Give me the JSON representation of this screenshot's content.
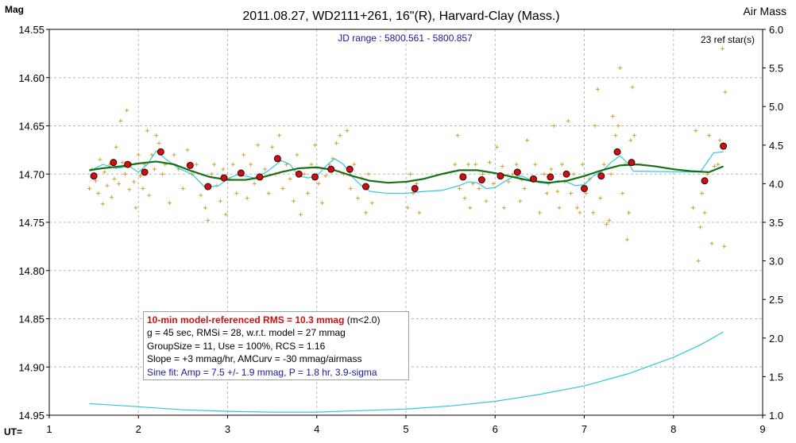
{
  "chart_data": {
    "type": "scatter",
    "title": "2011.08.27, WD2111+261, 16\"(R), Harvard-Clay (Mass.)",
    "subtitle": "JD range : 5800.561 - 5800.857",
    "ref_stars": "23 ref star(s)",
    "ylabel": "Mag",
    "y2label": "Air Mass",
    "xlabel": "UT=",
    "xlim": [
      1,
      9
    ],
    "ylim": [
      14.95,
      14.55
    ],
    "y2lim": [
      1.0,
      6.0
    ],
    "x_ticks": [
      "1",
      "2",
      "3",
      "4",
      "5",
      "6",
      "7",
      "8",
      "9"
    ],
    "y_ticks": [
      "14.55",
      "14.60",
      "14.65",
      "14.70",
      "14.75",
      "14.80",
      "14.85",
      "14.90",
      "14.95"
    ],
    "y2_ticks": [
      "6.0",
      "5.5",
      "5.0",
      "4.5",
      "4.0",
      "3.5",
      "3.0",
      "2.5",
      "2.0",
      "1.5",
      "1.0"
    ],
    "grid": true,
    "colors": {
      "raw": "#d4a032",
      "binned": "#d01010",
      "model": "#167016",
      "smooth": "#30c8d8",
      "airmass": "#30c8d8",
      "grid": "#b8b8b8",
      "subtitle": "#1a1a9a"
    },
    "series": [
      {
        "name": "binned",
        "x": [
          1.5,
          1.72,
          1.88,
          2.07,
          2.25,
          2.58,
          2.78,
          2.96,
          3.15,
          3.36,
          3.56,
          3.8,
          3.98,
          4.16,
          4.37,
          4.55,
          5.1,
          5.64,
          5.85,
          6.06,
          6.25,
          6.43,
          6.62,
          6.8,
          7.0,
          7.19,
          7.37,
          7.53,
          8.35,
          8.56
        ],
        "y": [
          14.702,
          14.688,
          14.69,
          14.698,
          14.677,
          14.691,
          14.713,
          14.704,
          14.699,
          14.703,
          14.684,
          14.7,
          14.703,
          14.695,
          14.695,
          14.713,
          14.715,
          14.703,
          14.706,
          14.702,
          14.698,
          14.705,
          14.703,
          14.7,
          14.715,
          14.702,
          14.677,
          14.688,
          14.707,
          14.671
        ]
      },
      {
        "name": "model",
        "x": [
          1.45,
          1.6,
          1.8,
          2.0,
          2.2,
          2.4,
          2.6,
          2.8,
          3.0,
          3.2,
          3.4,
          3.6,
          3.8,
          4.0,
          4.2,
          4.4,
          4.6,
          4.8,
          5.0,
          5.2,
          5.4,
          5.6,
          5.8,
          6.0,
          6.2,
          6.4,
          6.6,
          6.8,
          7.0,
          7.2,
          7.4,
          7.6,
          7.8,
          8.0,
          8.2,
          8.4,
          8.56
        ],
        "y": [
          14.696,
          14.694,
          14.692,
          14.689,
          14.687,
          14.69,
          14.697,
          14.703,
          14.706,
          14.706,
          14.703,
          14.698,
          14.694,
          14.693,
          14.696,
          14.702,
          14.707,
          14.709,
          14.708,
          14.705,
          14.7,
          14.696,
          14.696,
          14.699,
          14.703,
          14.707,
          14.709,
          14.707,
          14.702,
          14.696,
          14.691,
          14.69,
          14.692,
          14.695,
          14.697,
          14.698,
          14.692
        ]
      },
      {
        "name": "smooth",
        "x": [
          1.45,
          1.6,
          1.75,
          1.9,
          2.0,
          2.1,
          2.2,
          2.3,
          2.45,
          2.6,
          2.75,
          2.9,
          3.0,
          3.1,
          3.2,
          3.3,
          3.45,
          3.6,
          3.7,
          3.8,
          3.9,
          4.0,
          4.1,
          4.2,
          4.3,
          4.4,
          4.5,
          4.6,
          4.8,
          5.0,
          5.2,
          5.4,
          5.6,
          5.7,
          5.8,
          5.9,
          6.0,
          6.1,
          6.2,
          6.3,
          6.4,
          6.5,
          6.6,
          6.7,
          6.8,
          6.9,
          7.0,
          7.1,
          7.2,
          7.3,
          7.4,
          7.5,
          7.55,
          8.3,
          8.45,
          8.56
        ],
        "y": [
          14.697,
          14.69,
          14.694,
          14.692,
          14.698,
          14.69,
          14.676,
          14.684,
          14.694,
          14.7,
          14.714,
          14.712,
          14.705,
          14.701,
          14.702,
          14.704,
          14.697,
          14.686,
          14.69,
          14.702,
          14.704,
          14.702,
          14.692,
          14.684,
          14.69,
          14.703,
          14.712,
          14.718,
          14.72,
          14.72,
          14.718,
          14.717,
          14.712,
          14.708,
          14.709,
          14.715,
          14.714,
          14.708,
          14.703,
          14.702,
          14.706,
          14.709,
          14.71,
          14.707,
          14.708,
          14.712,
          14.711,
          14.702,
          14.697,
          14.688,
          14.681,
          14.69,
          14.697,
          14.698,
          14.678,
          14.677
        ]
      },
      {
        "name": "airmass",
        "x": [
          1.45,
          2.0,
          2.5,
          3.0,
          3.5,
          4.0,
          4.5,
          5.0,
          5.5,
          6.0,
          6.5,
          7.0,
          7.5,
          8.0,
          8.3,
          8.56
        ],
        "y": [
          1.15,
          1.11,
          1.07,
          1.05,
          1.04,
          1.04,
          1.06,
          1.08,
          1.12,
          1.18,
          1.27,
          1.38,
          1.54,
          1.75,
          1.91,
          2.08
        ]
      }
    ],
    "raw_points": [
      [
        1.45,
        14.715
      ],
      [
        1.48,
        14.695
      ],
      [
        1.52,
        14.707
      ],
      [
        1.55,
        14.72
      ],
      [
        1.57,
        14.685
      ],
      [
        1.6,
        14.731
      ],
      [
        1.62,
        14.698
      ],
      [
        1.65,
        14.712
      ],
      [
        1.68,
        14.69
      ],
      [
        1.7,
        14.724
      ],
      [
        1.73,
        14.705
      ],
      [
        1.75,
        14.672
      ],
      [
        1.78,
        14.71
      ],
      [
        1.8,
        14.645
      ],
      [
        1.82,
        14.688
      ],
      [
        1.85,
        14.7
      ],
      [
        1.87,
        14.634
      ],
      [
        1.9,
        14.716
      ],
      [
        1.92,
        14.69
      ],
      [
        1.95,
        14.708
      ],
      [
        1.97,
        14.735
      ],
      [
        2.0,
        14.68
      ],
      [
        2.02,
        14.702
      ],
      [
        2.05,
        14.715
      ],
      [
        2.07,
        14.69
      ],
      [
        2.1,
        14.655
      ],
      [
        2.12,
        14.722
      ],
      [
        2.15,
        14.68
      ],
      [
        2.18,
        14.695
      ],
      [
        2.2,
        14.66
      ],
      [
        2.23,
        14.668
      ],
      [
        2.27,
        14.7
      ],
      [
        2.3,
        14.69
      ],
      [
        2.35,
        14.73
      ],
      [
        2.4,
        14.68
      ],
      [
        2.45,
        14.695
      ],
      [
        2.5,
        14.715
      ],
      [
        2.55,
        14.675
      ],
      [
        2.6,
        14.7
      ],
      [
        2.65,
        14.69
      ],
      [
        2.7,
        14.722
      ],
      [
        2.75,
        14.735
      ],
      [
        2.78,
        14.748
      ],
      [
        2.82,
        14.7
      ],
      [
        2.85,
        14.69
      ],
      [
        2.88,
        14.712
      ],
      [
        2.92,
        14.728
      ],
      [
        2.95,
        14.695
      ],
      [
        2.98,
        14.742
      ],
      [
        3.02,
        14.705
      ],
      [
        3.06,
        14.69
      ],
      [
        3.1,
        14.72
      ],
      [
        3.14,
        14.7
      ],
      [
        3.18,
        14.68
      ],
      [
        3.22,
        14.725
      ],
      [
        3.26,
        14.69
      ],
      [
        3.3,
        14.71
      ],
      [
        3.34,
        14.67
      ],
      [
        3.38,
        14.705
      ],
      [
        3.42,
        14.695
      ],
      [
        3.46,
        14.72
      ],
      [
        3.5,
        14.672
      ],
      [
        3.54,
        14.7
      ],
      [
        3.58,
        14.66
      ],
      [
        3.62,
        14.715
      ],
      [
        3.66,
        14.69
      ],
      [
        3.7,
        14.705
      ],
      [
        3.74,
        14.728
      ],
      [
        3.78,
        14.68
      ],
      [
        3.82,
        14.742
      ],
      [
        3.86,
        14.7
      ],
      [
        3.9,
        14.72
      ],
      [
        3.94,
        14.69
      ],
      [
        3.98,
        14.67
      ],
      [
        4.02,
        14.71
      ],
      [
        4.06,
        14.73
      ],
      [
        4.1,
        14.702
      ],
      [
        4.14,
        14.69
      ],
      [
        4.18,
        14.684
      ],
      [
        4.22,
        14.668
      ],
      [
        4.26,
        14.66
      ],
      [
        4.3,
        14.7
      ],
      [
        4.34,
        14.655
      ],
      [
        4.38,
        14.715
      ],
      [
        4.42,
        14.69
      ],
      [
        4.46,
        14.725
      ],
      [
        4.5,
        14.704
      ],
      [
        4.55,
        14.74
      ],
      [
        4.58,
        14.7
      ],
      [
        4.62,
        14.73
      ],
      [
        5.02,
        14.735
      ],
      [
        5.05,
        14.7
      ],
      [
        5.08,
        14.72
      ],
      [
        5.12,
        14.71
      ],
      [
        5.15,
        14.74
      ],
      [
        5.55,
        14.69
      ],
      [
        5.58,
        14.66
      ],
      [
        5.6,
        14.715
      ],
      [
        5.63,
        14.7
      ],
      [
        5.66,
        14.725
      ],
      [
        5.7,
        14.69
      ],
      [
        5.72,
        14.735
      ],
      [
        5.75,
        14.71
      ],
      [
        5.78,
        14.69
      ],
      [
        5.82,
        14.715
      ],
      [
        5.86,
        14.7
      ],
      [
        5.9,
        14.728
      ],
      [
        5.94,
        14.688
      ],
      [
        5.98,
        14.71
      ],
      [
        6.02,
        14.672
      ],
      [
        6.05,
        14.7
      ],
      [
        6.08,
        14.692
      ],
      [
        6.1,
        14.735
      ],
      [
        6.15,
        14.708
      ],
      [
        6.2,
        14.7
      ],
      [
        6.24,
        14.69
      ],
      [
        6.28,
        14.728
      ],
      [
        6.3,
        14.706
      ],
      [
        6.33,
        14.715
      ],
      [
        6.36,
        14.665
      ],
      [
        6.4,
        14.705
      ],
      [
        6.45,
        14.69
      ],
      [
        6.5,
        14.74
      ],
      [
        6.55,
        14.7
      ],
      [
        6.58,
        14.72
      ],
      [
        6.6,
        14.71
      ],
      [
        6.63,
        14.695
      ],
      [
        6.66,
        14.65
      ],
      [
        6.7,
        14.718
      ],
      [
        6.72,
        14.735
      ],
      [
        6.75,
        14.69
      ],
      [
        6.78,
        14.708
      ],
      [
        6.82,
        14.645
      ],
      [
        6.85,
        14.72
      ],
      [
        6.88,
        14.7
      ],
      [
        6.92,
        14.735
      ],
      [
        6.95,
        14.74
      ],
      [
        6.98,
        14.69
      ],
      [
        7.02,
        14.72
      ],
      [
        7.06,
        14.705
      ],
      [
        7.1,
        14.74
      ],
      [
        7.12,
        14.65
      ],
      [
        7.15,
        14.612
      ],
      [
        7.18,
        14.725
      ],
      [
        7.22,
        14.69
      ],
      [
        7.25,
        14.752
      ],
      [
        7.28,
        14.748
      ],
      [
        7.3,
        14.7
      ],
      [
        7.32,
        14.64
      ],
      [
        7.35,
        14.66
      ],
      [
        7.38,
        14.65
      ],
      [
        7.4,
        14.59
      ],
      [
        7.43,
        14.72
      ],
      [
        7.46,
        14.69
      ],
      [
        7.48,
        14.768
      ],
      [
        7.5,
        14.74
      ],
      [
        7.52,
        14.665
      ],
      [
        7.54,
        14.61
      ],
      [
        7.56,
        14.66
      ],
      [
        8.22,
        14.735
      ],
      [
        8.25,
        14.655
      ],
      [
        8.28,
        14.79
      ],
      [
        8.3,
        14.755
      ],
      [
        8.32,
        14.72
      ],
      [
        8.35,
        14.74
      ],
      [
        8.38,
        14.7
      ],
      [
        8.4,
        14.66
      ],
      [
        8.43,
        14.772
      ],
      [
        8.46,
        14.692
      ],
      [
        8.5,
        14.69
      ],
      [
        8.52,
        14.665
      ],
      [
        8.55,
        14.57
      ],
      [
        8.57,
        14.775
      ],
      [
        8.58,
        14.615
      ]
    ]
  },
  "stats_box": {
    "line1_main": "10-min model-referenced RMS = 10.3 mmag",
    "line1_suffix": " (m<2.0)",
    "line2": "g = 45 sec, RMSi = 28, w.r.t. model = 27 mmag",
    "line3": "GroupSize = 11, Use = 100%, RCS = 1.16",
    "line4": "Slope = +3 mmag/hr, AMCurv = -30 mmag/airmass",
    "line5": "Sine fit:  Amp = 7.5 +/- 1.9 mmag, P = 1.8 hr, 3.9-sigma"
  }
}
